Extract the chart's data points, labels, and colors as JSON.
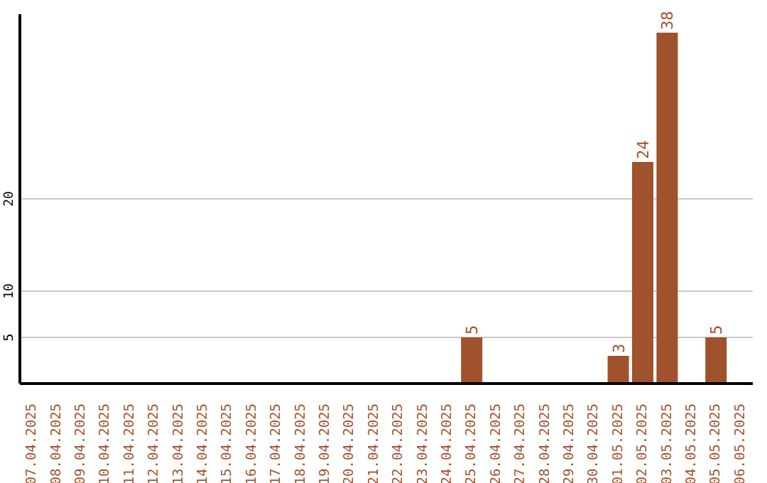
{
  "chart_data": {
    "type": "bar",
    "categories": [
      "07.04.2025",
      "08.04.2025",
      "09.04.2025",
      "10.04.2025",
      "11.04.2025",
      "12.04.2025",
      "13.04.2025",
      "14.04.2025",
      "15.04.2025",
      "16.04.2025",
      "17.04.2025",
      "18.04.2025",
      "19.04.2025",
      "20.04.2025",
      "21.04.2025",
      "22.04.2025",
      "23.04.2025",
      "24.04.2025",
      "25.04.2025",
      "26.04.2025",
      "27.04.2025",
      "28.04.2025",
      "29.04.2025",
      "30.04.2025",
      "01.05.2025",
      "02.05.2025",
      "03.05.2025",
      "04.05.2025",
      "05.05.2025",
      "06.05.2025"
    ],
    "values": [
      0,
      0,
      0,
      0,
      0,
      0,
      0,
      0,
      0,
      0,
      0,
      0,
      0,
      0,
      0,
      0,
      0,
      0,
      5,
      0,
      0,
      0,
      0,
      0,
      3,
      24,
      38,
      0,
      5,
      0
    ],
    "value_labels": [
      null,
      null,
      null,
      null,
      null,
      null,
      null,
      null,
      null,
      null,
      null,
      null,
      null,
      null,
      null,
      null,
      null,
      null,
      "5",
      null,
      null,
      null,
      null,
      null,
      "3",
      "24",
      "38",
      null,
      "5",
      null
    ],
    "color": "#a0522d",
    "ylim": [
      0,
      40
    ],
    "yticks": [
      5,
      10,
      20
    ],
    "grid": "y"
  }
}
